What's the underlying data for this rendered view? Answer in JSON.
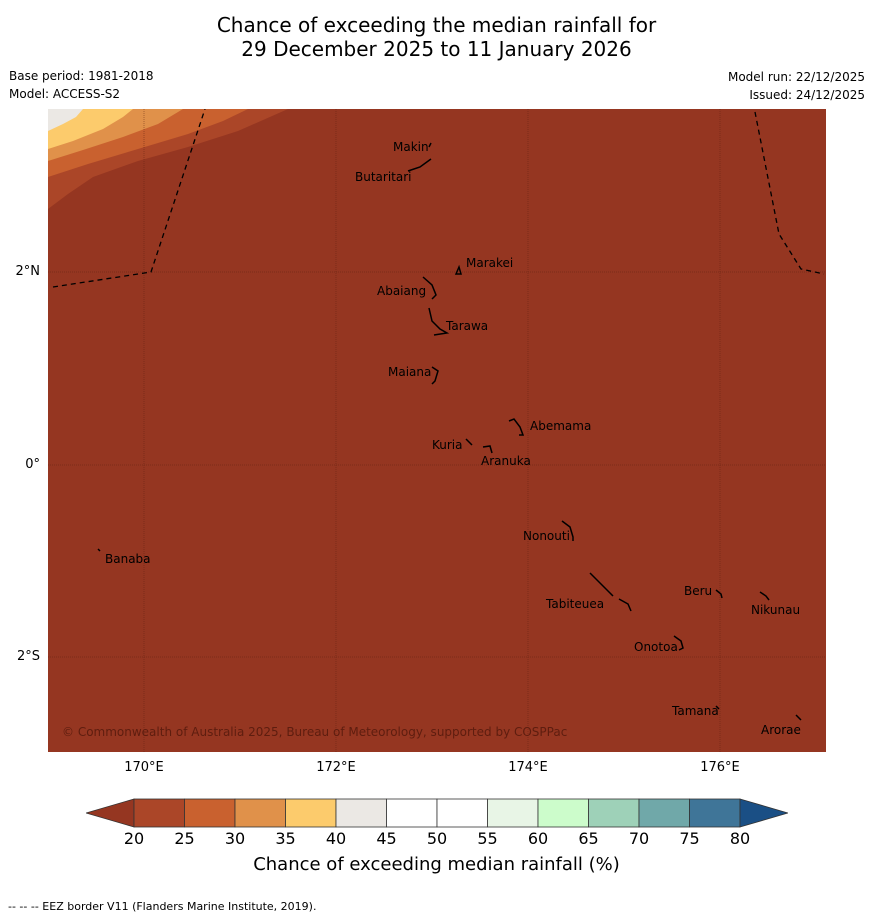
{
  "title_line1": "Chance of exceeding the median rainfall for",
  "title_line2": "29 December 2025 to 11 January 2026",
  "base_period": "Base period: 1981-2018",
  "model": "Model: ACCESS-S2",
  "model_run": "Model run: 22/12/2025",
  "issued": "Issued: 24/12/2025",
  "copyright": "© Commonwealth of Australia 2025, Bureau of Meteorology, supported by COSPPac",
  "lat_ticks": [
    "2°N",
    "0°",
    "2°S"
  ],
  "lon_ticks": [
    "170°E",
    "172°E",
    "174°E",
    "176°E"
  ],
  "places": [
    "Makin",
    "Butaritari",
    "Marakei",
    "Abaiang",
    "Tarawa",
    "Maiana",
    "Abemama",
    "Kuria",
    "Aranuka",
    "Nonouti",
    "Banaba",
    "Beru",
    "Nikunau",
    "Tabiteuea",
    "Onotoa",
    "Tamana",
    "Arorae"
  ],
  "colorbar": {
    "labels": [
      "20",
      "25",
      "30",
      "35",
      "40",
      "45",
      "50",
      "55",
      "60",
      "65",
      "70",
      "75",
      "80"
    ],
    "colors": [
      "#ab4628",
      "#c9612f",
      "#e0914a",
      "#fccb6c",
      "#ebe8e4",
      "#ffffff",
      "#ffffff",
      "#e8f5e6",
      "#ccfccb",
      "#9ed1b8",
      "#70a8a9",
      "#3f7598"
    ],
    "under_color": "#953621",
    "over_color": "#1a4f85",
    "title": "Chance of exceeding median rainfall (%)"
  },
  "footer": "--  --  -- EEZ border V11 (Flanders Marine Institute, 2019)."
}
